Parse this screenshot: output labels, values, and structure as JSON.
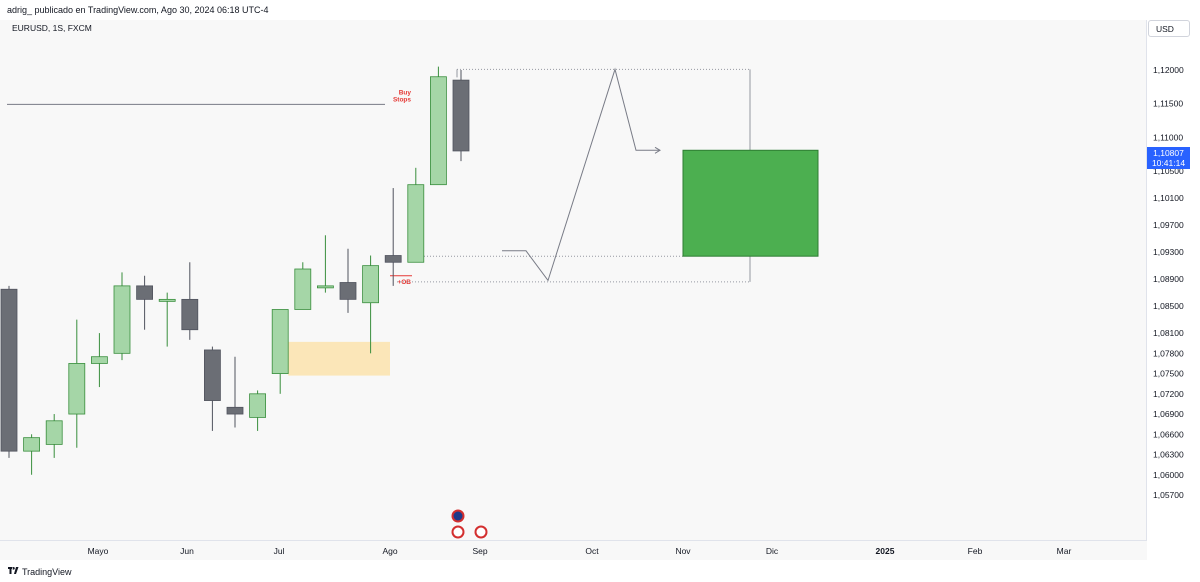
{
  "header": {
    "publisher": "adrig_ publicado en TradingView.com, Ago 30, 2024 06:18 UTC-4"
  },
  "symbol": "EURUSD, 1S, FXCM",
  "currency": "USD",
  "price_tag": {
    "price": "1,10807",
    "countdown": "10:41:14"
  },
  "footer": {
    "logo_glyph": "𝟏𝟕",
    "brand": "TradingView"
  },
  "annotations": {
    "buy_stops": [
      "Buy",
      "Stops"
    ],
    "ob": "+OB"
  },
  "colors": {
    "bull_body": "#a5d6a7",
    "bull_border": "#388e3c",
    "bear_body": "#6b6e75",
    "bear_border": "#50535e",
    "zone_orange": "#fbe3b0",
    "target_green": "#4caf50",
    "level_line": "#787b86",
    "stops_text": "#e53935",
    "tag_blue": "#2962ff"
  },
  "chart_data": {
    "type": "candlestick",
    "y_ticks": [
      "1,12000",
      "1,11500",
      "1,11000",
      "1,10500",
      "1,10100",
      "1,09700",
      "1,09300",
      "1,08900",
      "1,08500",
      "1,08100",
      "1,07800",
      "1,07500",
      "1,07200",
      "1,06900",
      "1,06600",
      "1,06300",
      "1,06000",
      "1,05700"
    ],
    "x_ticks": [
      "Mayo",
      "Jun",
      "Jul",
      "Ago",
      "Sep",
      "Oct",
      "Nov",
      "Dic",
      "2025",
      "Feb",
      "Mar"
    ],
    "candles": [
      {
        "o": 1.0875,
        "h": 1.088,
        "l": 1.0625,
        "c": 1.0635
      },
      {
        "o": 1.0635,
        "h": 1.066,
        "l": 1.06,
        "c": 1.0655
      },
      {
        "o": 1.0645,
        "h": 1.069,
        "l": 1.0625,
        "c": 1.068
      },
      {
        "o": 1.069,
        "h": 1.083,
        "l": 1.064,
        "c": 1.0765
      },
      {
        "o": 1.0765,
        "h": 1.081,
        "l": 1.073,
        "c": 1.0775
      },
      {
        "o": 1.078,
        "h": 1.09,
        "l": 1.077,
        "c": 1.088
      },
      {
        "o": 1.088,
        "h": 1.0895,
        "l": 1.0815,
        "c": 1.086
      },
      {
        "o": 1.086,
        "h": 1.087,
        "l": 1.079,
        "c": 1.086
      },
      {
        "o": 1.086,
        "h": 1.0915,
        "l": 1.08,
        "c": 1.0815
      },
      {
        "o": 1.0785,
        "h": 1.079,
        "l": 1.0665,
        "c": 1.071
      },
      {
        "o": 1.07,
        "h": 1.0775,
        "l": 1.067,
        "c": 1.069
      },
      {
        "o": 1.0685,
        "h": 1.0725,
        "l": 1.0665,
        "c": 1.072
      },
      {
        "o": 1.075,
        "h": 1.0845,
        "l": 1.072,
        "c": 1.0845
      },
      {
        "o": 1.0845,
        "h": 1.0915,
        "l": 1.0845,
        "c": 1.0905
      },
      {
        "o": 1.088,
        "h": 1.0955,
        "l": 1.087,
        "c": 1.088
      },
      {
        "o": 1.0885,
        "h": 1.0935,
        "l": 1.084,
        "c": 1.086
      },
      {
        "o": 1.0855,
        "h": 1.0925,
        "l": 1.078,
        "c": 1.091
      },
      {
        "o": 1.0925,
        "h": 1.1025,
        "l": 1.088,
        "c": 1.0915
      },
      {
        "o": 1.0915,
        "h": 1.1055,
        "l": 1.0915,
        "c": 1.103
      },
      {
        "o": 1.103,
        "h": 1.1205,
        "l": 1.103,
        "c": 1.119
      },
      {
        "o": 1.1185,
        "h": 1.12,
        "l": 1.1065,
        "c": 1.108
      }
    ],
    "levels": {
      "buy_stops": 1.1149,
      "ob": 1.0895,
      "box_top": 1.1201,
      "box_bottom": 1.0886,
      "zone_top": 1.0797,
      "zone_bottom": 1.0747,
      "target_top": 1.1081,
      "target_bottom": 1.0924
    },
    "projection_path": [
      [
        2,
        1.0932
      ],
      [
        3,
        1.0932
      ],
      [
        4.5,
        1.0888
      ],
      [
        7.5,
        1.1201
      ],
      [
        8.5,
        1.1081
      ],
      [
        9.2,
        1.1081
      ]
    ]
  }
}
